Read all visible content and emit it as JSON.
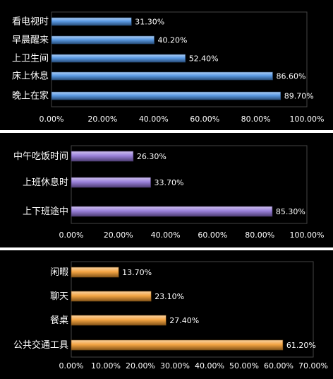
{
  "chart_data": [
    {
      "type": "bar",
      "orientation": "horizontal",
      "categories": [
        "晚上在家",
        "床上休息",
        "上卫生间",
        "早晨醒来",
        "看电视时"
      ],
      "values": [
        89.7,
        86.6,
        52.4,
        40.2,
        31.3
      ],
      "value_labels": [
        "89.70%",
        "86.60%",
        "52.40%",
        "40.20%",
        "31.30%"
      ],
      "xlim": [
        0,
        100
      ],
      "x_ticks": [
        "0.00%",
        "20.00%",
        "40.00%",
        "60.00%",
        "80.00%",
        "100.00%"
      ],
      "color": "#4a90e2",
      "grid": false
    },
    {
      "type": "bar",
      "orientation": "horizontal",
      "categories": [
        "上下班途中",
        "上班休息时",
        "中午吃饭时间"
      ],
      "values": [
        85.3,
        33.7,
        26.3
      ],
      "value_labels": [
        "85.30%",
        "33.70%",
        "26.30%"
      ],
      "xlim": [
        0,
        100
      ],
      "x_ticks": [
        "0.00%",
        "20.00%",
        "40.00%",
        "60.00%",
        "80.00%",
        "100.00%"
      ],
      "color": "#8f73d6",
      "grid": false
    },
    {
      "type": "bar",
      "orientation": "horizontal",
      "categories": [
        "公共交通工具",
        "餐桌",
        "聊天",
        "闲暇"
      ],
      "values": [
        61.2,
        27.4,
        23.1,
        13.7
      ],
      "value_labels": [
        "61.20%",
        "27.40%",
        "23.10%",
        "13.70%"
      ],
      "xlim": [
        0,
        70
      ],
      "x_ticks": [
        "0.00%",
        "10.00%",
        "20.00%",
        "30.00%",
        "40.00%",
        "50.00%",
        "60.00%",
        "70.00%"
      ],
      "color": "#f29a2e",
      "grid": false
    }
  ]
}
